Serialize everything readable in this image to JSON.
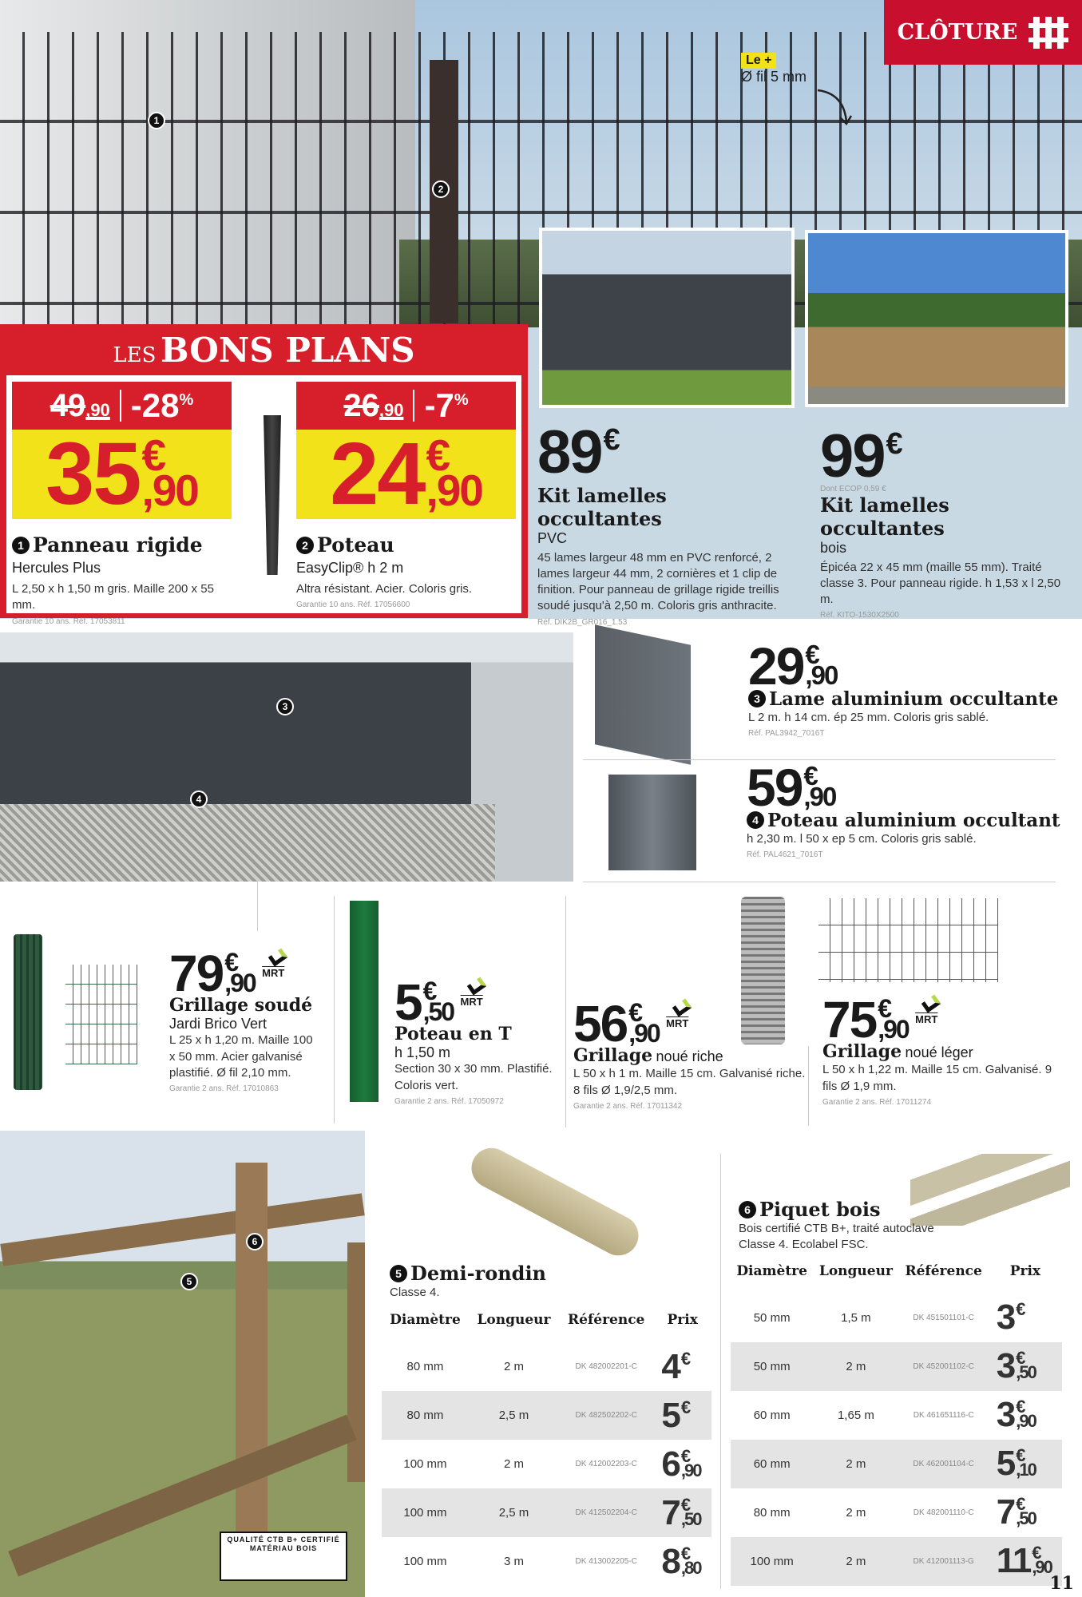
{
  "header": {
    "section_title": "CLÔTURE",
    "section_icon": "fence-icon",
    "page_number": "11"
  },
  "hero": {
    "badge": "Le +",
    "note": "Ø fil 5 mm",
    "markers": [
      "1",
      "2"
    ]
  },
  "bons_plans": {
    "title_prefix": "LES",
    "title": "BONS PLANS",
    "items": [
      {
        "num": "1",
        "old_int": "49",
        "old_cents": ",90",
        "discount": "-28",
        "pct": "%",
        "int": "35",
        "cents": ",90",
        "name": "Panneau rigide",
        "sub": "Hercules Plus",
        "desc": "L 2,50 x h 1,50 m gris. Maille 200 x 55 mm.",
        "ref": "Garantie 10 ans. Réf. 17053811"
      },
      {
        "num": "2",
        "old_int": "26",
        "old_cents": ",90",
        "discount": "-7",
        "pct": "%",
        "int": "24",
        "cents": ",90",
        "name": "Poteau",
        "sub": "EasyClip® h 2 m",
        "desc": "Altra résistant. Acier. Coloris gris.",
        "ref": "Garantie 10 ans. Réf. 17056600"
      }
    ]
  },
  "kits": [
    {
      "int": "89",
      "ecop": "",
      "name": "Kit lamelles occultantes",
      "sub": "PVC",
      "desc": "45 lames largeur 48 mm en PVC renforcé, 2 lames largeur 44 mm, 2 cornières et 1 clip de finition. Pour panneau de grillage rigide treillis soudé jusqu'à 2,50 m. Coloris gris anthracite.",
      "ref": "Réf. DIK2B_GR016_1.53"
    },
    {
      "int": "99",
      "ecop": "Dont ECOP  0,59 €",
      "name": "Kit lamelles occultantes",
      "sub": "bois",
      "desc": "Épicéa 22 x 45 mm (maille 55 mm). Traité classe 3. Pour panneau rigide. h 1,53 x l 2,50 m.",
      "ref": "Réf. KITO-1530X2500"
    }
  ],
  "currency": "€",
  "aluminium": {
    "markers": [
      "3",
      "4"
    ],
    "items": [
      {
        "num": "3",
        "int": "29",
        "cents": ",90",
        "name": "Lame aluminium occultante",
        "desc": "L 2 m. h 14 cm. ép 25 mm. Coloris gris sablé.",
        "ref": "Réf. PAL3942_7016T"
      },
      {
        "num": "4",
        "int": "59",
        "cents": ",90",
        "name": "Poteau aluminium occultant",
        "desc": "h 2,30 m. l 50 x ep 5 cm. Coloris gris sablé.",
        "ref": "Réf. PAL4621_7016T"
      }
    ]
  },
  "brand_logo": "MRT",
  "grillage": [
    {
      "int": "79",
      "cents": ",90",
      "name": "Grillage soudé",
      "name_light": "",
      "sub": "Jardi Brico Vert",
      "desc": "L 25 x h 1,20 m. Maille 100 x 50 mm. Acier galvanisé plastifié. Ø fil 2,10 mm.",
      "ref": "Garantie 2 ans. Réf. 17010863"
    },
    {
      "int": "5",
      "cents": ",50",
      "name": "Poteau en T",
      "name_light": "",
      "sub": "h 1,50 m",
      "desc": "Section 30 x 30 mm. Plastifié. Coloris vert.",
      "ref": "Garantie 2 ans. Réf. 17050972"
    },
    {
      "int": "56",
      "cents": ",90",
      "name": "Grillage",
      "name_light": "noué riche",
      "sub": "",
      "desc": "L 50 x h 1 m. Maille 15 cm. Galvanisé riche. 8 fils Ø 1,9/2,5 mm.",
      "ref": "Garantie 2 ans. Réf. 17011342"
    },
    {
      "int": "75",
      "cents": ",90",
      "name": "Grillage",
      "name_light": "noué léger",
      "sub": "",
      "desc": "L 50 x h 1,22 m. Maille 15 cm. Galvanisé. 9 fils Ø 1,9 mm.",
      "ref": "Garantie 2 ans. Réf. 17011274"
    }
  ],
  "wood": {
    "markers": [
      "5",
      "6"
    ],
    "ctb_logo": "QUALITÉ CTB B+ CERTIFIÉ MATÉRIAU BOIS",
    "headers": [
      "Diamètre",
      "Longueur",
      "Référence",
      "Prix"
    ],
    "demi_rondin": {
      "num": "5",
      "name": "Demi-rondin",
      "desc": "Classe 4.",
      "rows": [
        {
          "d": "80 mm",
          "l": "2 m",
          "ref": "DK 482002201-C",
          "int": "4",
          "cents": ""
        },
        {
          "d": "80 mm",
          "l": "2,5 m",
          "ref": "DK 482502202-C",
          "int": "5",
          "cents": ""
        },
        {
          "d": "100 mm",
          "l": "2 m",
          "ref": "DK 412002203-C",
          "int": "6",
          "cents": ",90"
        },
        {
          "d": "100 mm",
          "l": "2,5 m",
          "ref": "DK 412502204-C",
          "int": "7",
          "cents": ",50"
        },
        {
          "d": "100 mm",
          "l": "3 m",
          "ref": "DK 413002205-C",
          "int": "8",
          "cents": ",80"
        }
      ]
    },
    "piquet": {
      "num": "6",
      "name": "Piquet bois",
      "desc": "Bois certifié CTB B+, traité autoclave Classe 4. Ecolabel FSC.",
      "rows": [
        {
          "d": "50 mm",
          "l": "1,5 m",
          "ref": "DK 451501101-C",
          "int": "3",
          "cents": ""
        },
        {
          "d": "50 mm",
          "l": "2 m",
          "ref": "DK 452001102-C",
          "int": "3",
          "cents": ",50"
        },
        {
          "d": "60 mm",
          "l": "1,65 m",
          "ref": "DK 461651116-C",
          "int": "3",
          "cents": ",90"
        },
        {
          "d": "60 mm",
          "l": "2 m",
          "ref": "DK 462001104-C",
          "int": "5",
          "cents": ",10"
        },
        {
          "d": "80 mm",
          "l": "2 m",
          "ref": "DK 482001110-C",
          "int": "7",
          "cents": ",50"
        },
        {
          "d": "100 mm",
          "l": "2 m",
          "ref": "DK 412001113-G",
          "int": "11",
          "cents": ",90"
        }
      ]
    }
  },
  "colors": {
    "red": "#c8102e",
    "yellow": "#f2e21a",
    "panel_blue": "#c9d9e3"
  }
}
